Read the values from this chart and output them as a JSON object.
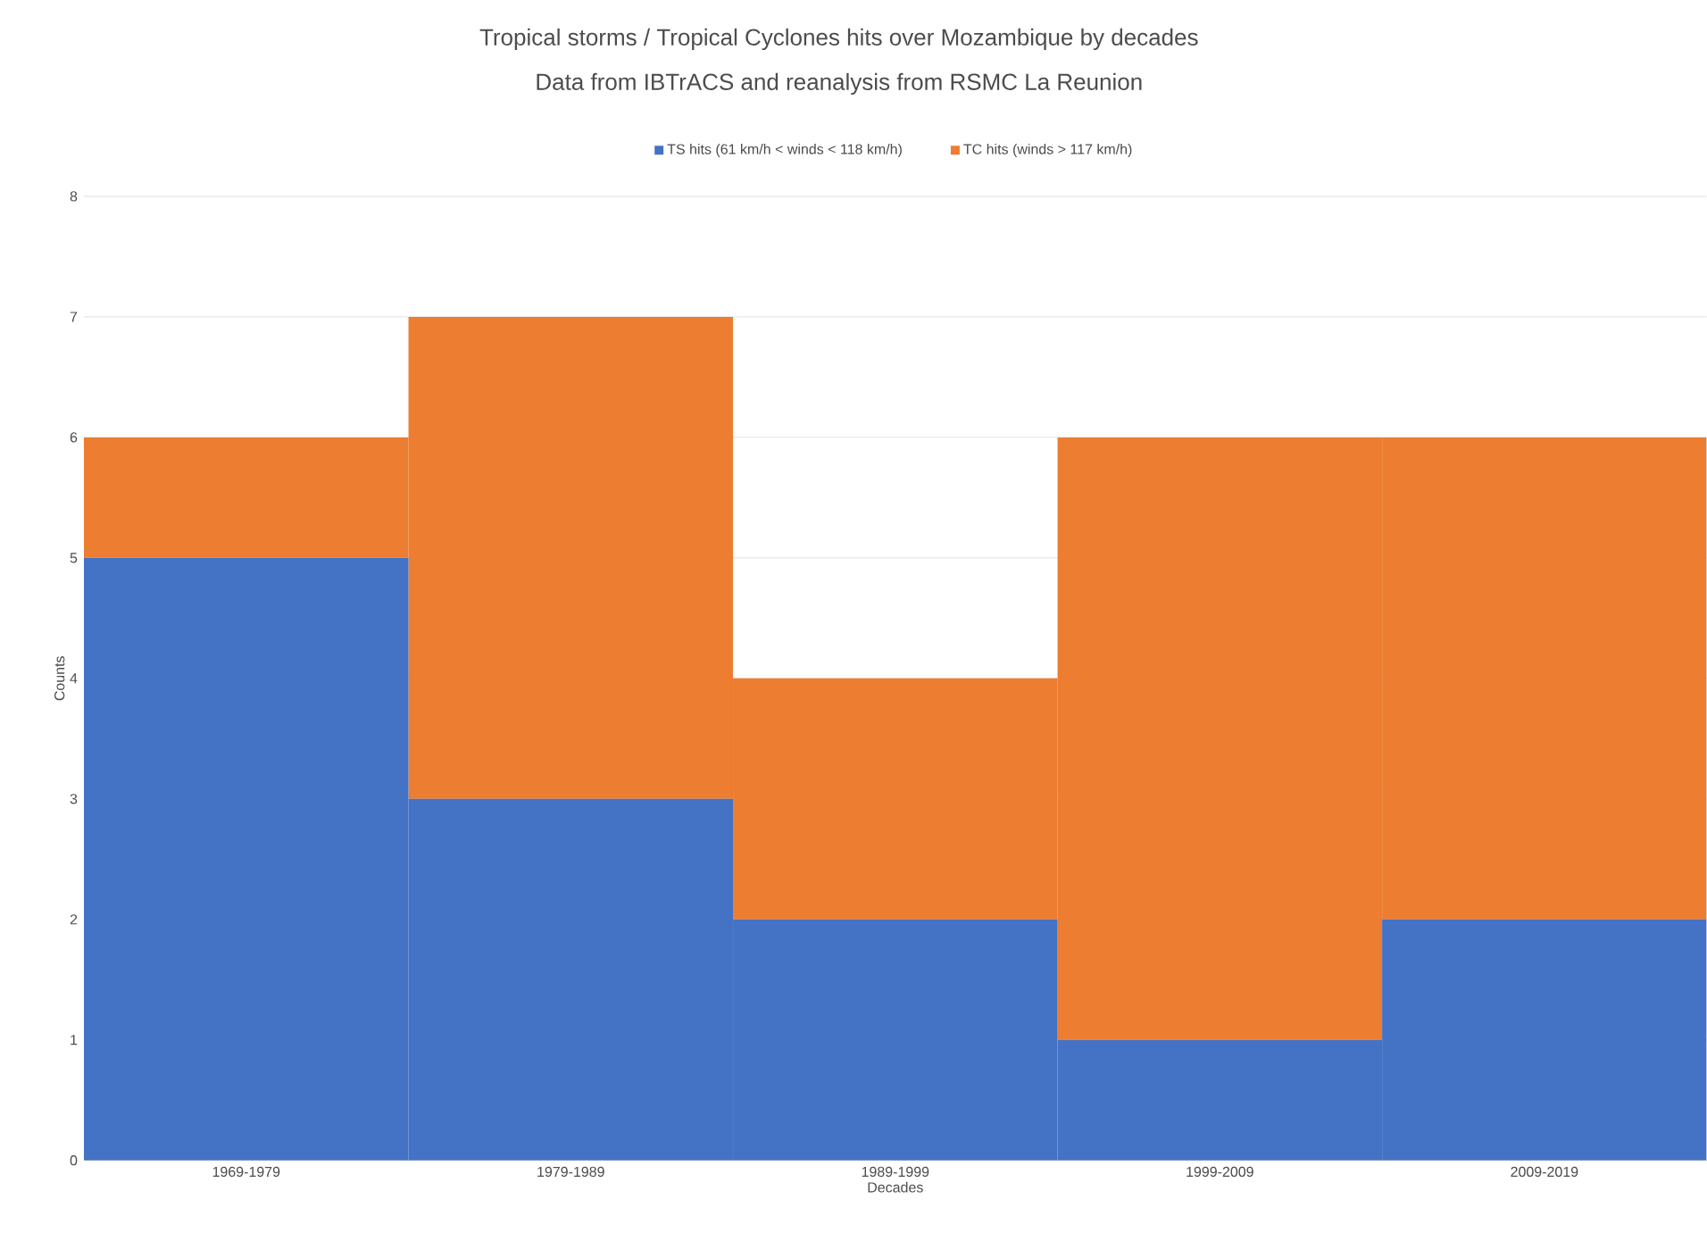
{
  "chart_data": {
    "type": "bar",
    "stacked": true,
    "title": "Tropical storms / Tropical Cyclones hits over Mozambique by decades",
    "subtitle": "Data from IBTrACS and reanalysis from RSMC La Reunion",
    "xlabel": "Decades",
    "ylabel": "Counts",
    "categories": [
      "1969-1979",
      "1979-1989",
      "1989-1999",
      "1999-2009",
      "2009-2019"
    ],
    "series": [
      {
        "name": "TS hits (61 km/h < winds < 118 km/h)",
        "color": "#4472c4",
        "values": [
          5,
          3,
          2,
          1,
          2
        ]
      },
      {
        "name": "TC hits (winds > 117 km/h)",
        "color": "#ed7d31",
        "values": [
          1,
          4,
          2,
          5,
          4
        ]
      }
    ],
    "ylim": [
      0,
      8
    ],
    "yticks": [
      0,
      1,
      2,
      3,
      4,
      5,
      6,
      7,
      8
    ],
    "grid": "y",
    "legend": "top"
  }
}
